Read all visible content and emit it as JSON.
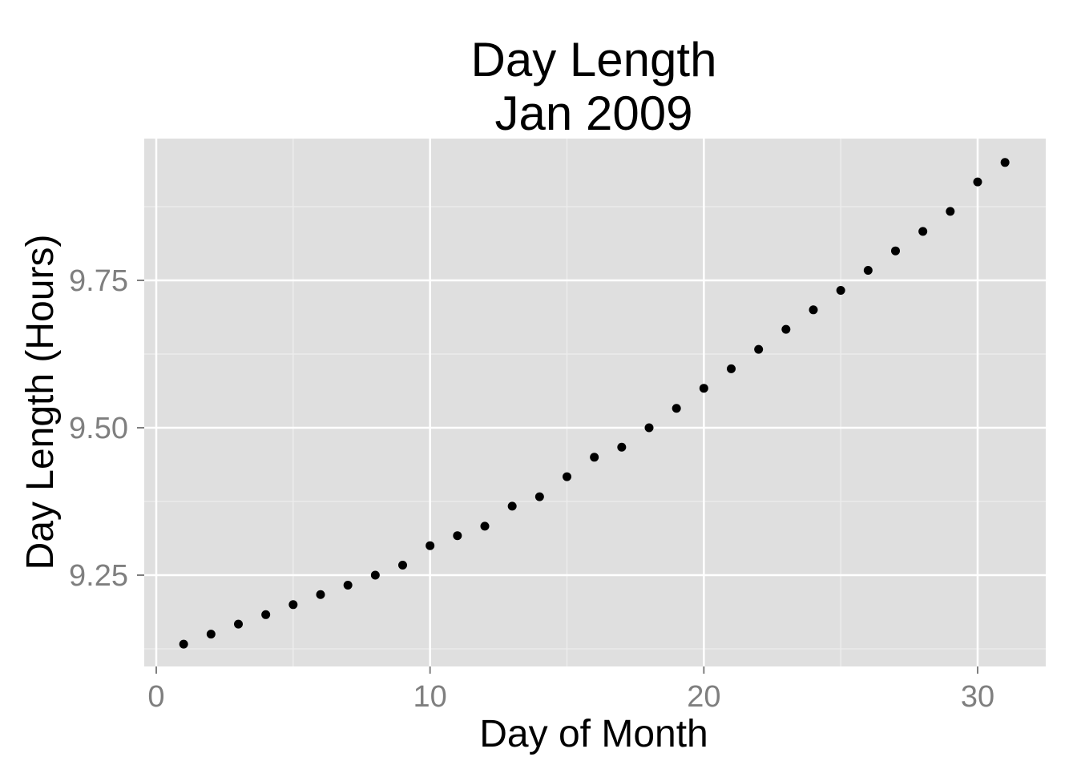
{
  "chart_data": {
    "type": "scatter",
    "title": [
      "Day Length",
      "Jan 2009"
    ],
    "xlabel": "Day of Month",
    "ylabel": "Day Length (Hours)",
    "xlim": [
      0.0,
      31.0
    ],
    "ylim": [
      9.12,
      9.98
    ],
    "x_ticks": [
      0,
      10,
      20,
      30
    ],
    "x_tick_labels": [
      "0",
      "10",
      "20",
      "30"
    ],
    "x_minor_ticks": [
      5,
      15,
      25
    ],
    "y_ticks": [
      9.25,
      9.5,
      9.75
    ],
    "y_tick_labels": [
      "9.25",
      "9.50",
      "9.75"
    ],
    "y_minor_ticks": [
      9.125,
      9.375,
      9.625,
      9.875
    ],
    "grid": true,
    "colors": {
      "panel_background": "#dfdfdf",
      "grid_major": "#ffffff",
      "grid_minor": "#ececec",
      "points": "#000000",
      "tick_label": "#7f7f7f",
      "tick_mark": "#7f7f7f"
    },
    "x": [
      1,
      2,
      3,
      4,
      5,
      6,
      7,
      8,
      9,
      10,
      11,
      12,
      13,
      14,
      15,
      16,
      17,
      18,
      19,
      20,
      21,
      22,
      23,
      24,
      25,
      26,
      27,
      28,
      29,
      30,
      31
    ],
    "y": [
      9.133,
      9.15,
      9.167,
      9.183,
      9.2,
      9.217,
      9.233,
      9.25,
      9.267,
      9.3,
      9.317,
      9.333,
      9.367,
      9.383,
      9.417,
      9.45,
      9.467,
      9.5,
      9.533,
      9.567,
      9.6,
      9.633,
      9.667,
      9.7,
      9.733,
      9.767,
      9.8,
      9.833,
      9.867,
      9.917,
      9.95
    ]
  }
}
